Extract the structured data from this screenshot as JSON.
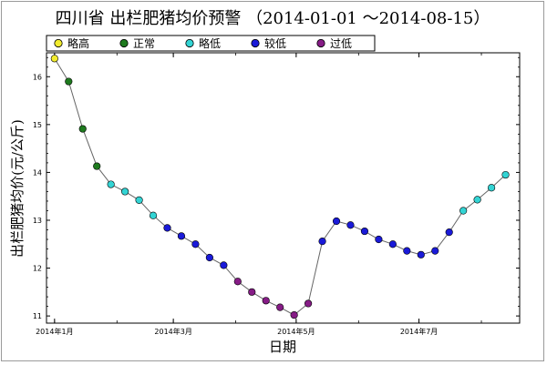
{
  "chart_data": {
    "type": "scatter",
    "title": "四川省 出栏肥猪均价预警 （2014-01-01 ～2014-08-15）",
    "xlabel": "日期",
    "ylabel": "出栏肥猪均价(元/公斤)",
    "ylim": [
      10.85,
      16.5
    ],
    "y_ticks": [
      11,
      12,
      13,
      14,
      15,
      16
    ],
    "xlim": [
      "2013-12-28",
      "2014-08-20"
    ],
    "x_ticks": [
      {
        "date": "2014-01-01",
        "label": "2014年1月"
      },
      {
        "date": "2014-03-01",
        "label": "2014年3月"
      },
      {
        "date": "2014-05-01",
        "label": "2014年5月"
      },
      {
        "date": "2014-07-01",
        "label": "2014年7月"
      }
    ],
    "grid": false,
    "legend_position": "top",
    "connect_points": true,
    "line_color": "#666666",
    "categories": [
      {
        "name": "略高",
        "color": "#f2ec2e"
      },
      {
        "name": "正常",
        "color": "#1e7a1e"
      },
      {
        "name": "略低",
        "color": "#33d4d4"
      },
      {
        "name": "较低",
        "color": "#1a1ad8"
      },
      {
        "name": "过低",
        "color": "#861c86"
      }
    ],
    "points": [
      {
        "x": "2014-01-01",
        "y": 16.38,
        "category": "略高"
      },
      {
        "x": "2014-01-08",
        "y": 15.9,
        "category": "正常"
      },
      {
        "x": "2014-01-15",
        "y": 14.91,
        "category": "正常"
      },
      {
        "x": "2014-01-22",
        "y": 14.13,
        "category": "正常"
      },
      {
        "x": "2014-01-29",
        "y": 13.75,
        "category": "略低"
      },
      {
        "x": "2014-02-05",
        "y": 13.6,
        "category": "略低"
      },
      {
        "x": "2014-02-12",
        "y": 13.42,
        "category": "略低"
      },
      {
        "x": "2014-02-19",
        "y": 13.1,
        "category": "略低"
      },
      {
        "x": "2014-02-26",
        "y": 12.84,
        "category": "较低"
      },
      {
        "x": "2014-03-05",
        "y": 12.67,
        "category": "较低"
      },
      {
        "x": "2014-03-12",
        "y": 12.5,
        "category": "较低"
      },
      {
        "x": "2014-03-19",
        "y": 12.22,
        "category": "较低"
      },
      {
        "x": "2014-03-26",
        "y": 12.06,
        "category": "较低"
      },
      {
        "x": "2014-04-02",
        "y": 11.72,
        "category": "过低"
      },
      {
        "x": "2014-04-09",
        "y": 11.5,
        "category": "过低"
      },
      {
        "x": "2014-04-16",
        "y": 11.32,
        "category": "过低"
      },
      {
        "x": "2014-04-23",
        "y": 11.18,
        "category": "过低"
      },
      {
        "x": "2014-04-30",
        "y": 11.02,
        "category": "过低"
      },
      {
        "x": "2014-05-07",
        "y": 11.26,
        "category": "过低"
      },
      {
        "x": "2014-05-14",
        "y": 12.56,
        "category": "较低"
      },
      {
        "x": "2014-05-21",
        "y": 12.98,
        "category": "较低"
      },
      {
        "x": "2014-05-28",
        "y": 12.9,
        "category": "较低"
      },
      {
        "x": "2014-06-04",
        "y": 12.77,
        "category": "较低"
      },
      {
        "x": "2014-06-11",
        "y": 12.6,
        "category": "较低"
      },
      {
        "x": "2014-06-18",
        "y": 12.5,
        "category": "较低"
      },
      {
        "x": "2014-06-25",
        "y": 12.36,
        "category": "较低"
      },
      {
        "x": "2014-07-02",
        "y": 12.28,
        "category": "较低"
      },
      {
        "x": "2014-07-09",
        "y": 12.36,
        "category": "较低"
      },
      {
        "x": "2014-07-16",
        "y": 12.75,
        "category": "较低"
      },
      {
        "x": "2014-07-23",
        "y": 13.2,
        "category": "略低"
      },
      {
        "x": "2014-07-30",
        "y": 13.43,
        "category": "略低"
      },
      {
        "x": "2014-08-06",
        "y": 13.68,
        "category": "略低"
      },
      {
        "x": "2014-08-13",
        "y": 13.95,
        "category": "略低"
      }
    ]
  }
}
